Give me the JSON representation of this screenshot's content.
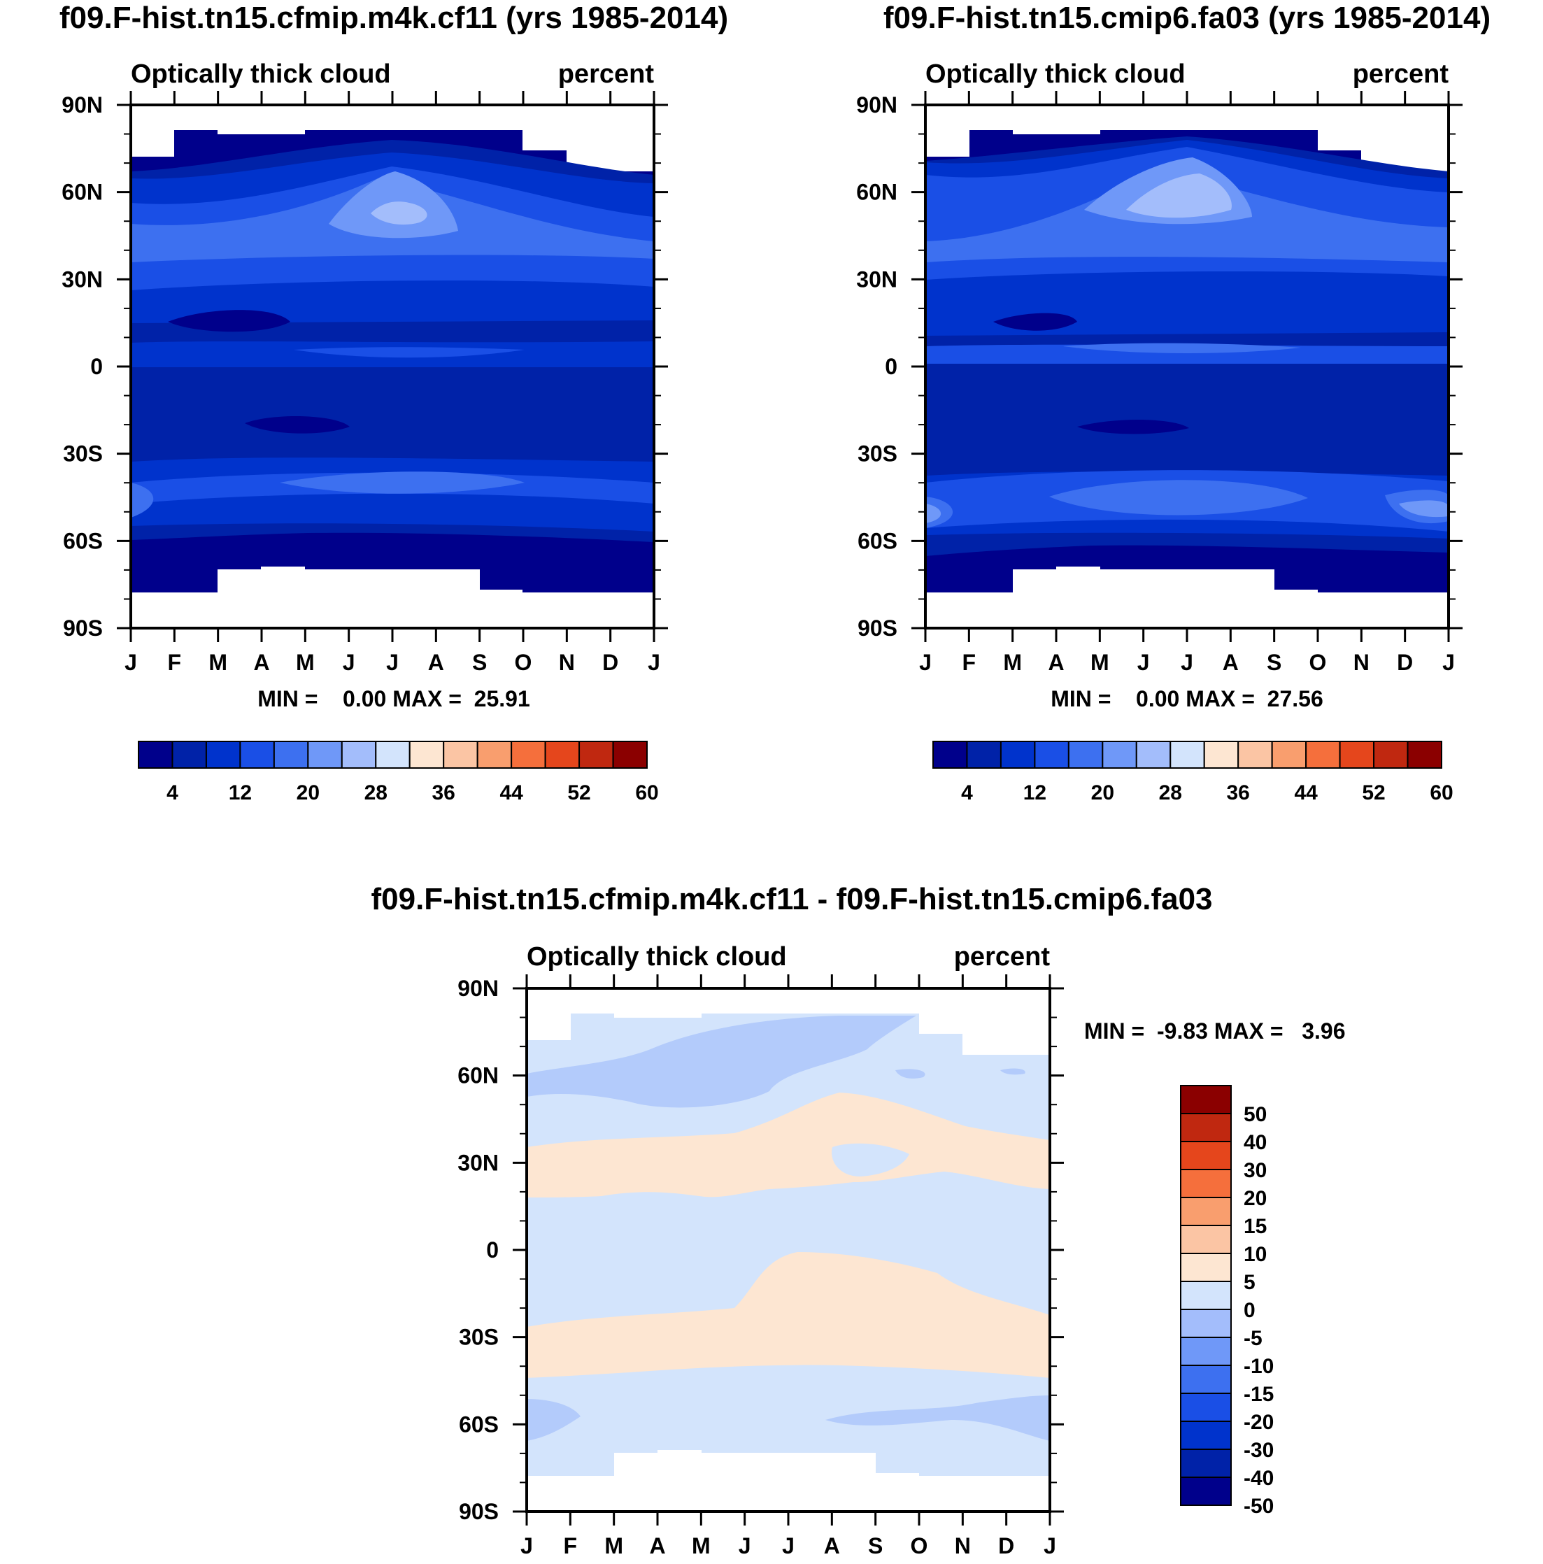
{
  "chart_data": [
    {
      "type": "heatmap",
      "panel": "model-a",
      "title": "f09.F-hist.tn15.cfmip.m4k.cf11 (yrs 1985-2014)",
      "subtitle_left": "Optically thick cloud",
      "subtitle_right": "percent",
      "x_ticks": [
        "J",
        "F",
        "M",
        "A",
        "M",
        "J",
        "J",
        "A",
        "S",
        "O",
        "N",
        "D",
        "J"
      ],
      "y_ticks": [
        "90N",
        "60N",
        "30N",
        "0",
        "30S",
        "60S",
        "90S"
      ],
      "xlim": [
        0,
        12
      ],
      "ylim": [
        -90,
        90
      ],
      "stats": "MIN =    0.00 MAX =  25.91",
      "contour_fields": [
        {
          "level": 1,
          "lat_range": [
            -78,
            82
          ]
        },
        {
          "level": 2,
          "lat_range": [
            -72,
            72
          ]
        },
        {
          "level": 3,
          "lat_range": [
            -60,
            68
          ]
        },
        {
          "level": 4,
          "lat_range": [
            45,
            62
          ]
        },
        {
          "level": 5,
          "lat_range": [
            50,
            60
          ]
        },
        {
          "level": 6,
          "lat_range": [
            52,
            56
          ]
        }
      ]
    },
    {
      "type": "heatmap",
      "panel": "model-b",
      "title": "f09.F-hist.tn15.cmip6.fa03 (yrs 1985-2014)",
      "subtitle_left": "Optically thick cloud",
      "subtitle_right": "percent",
      "x_ticks": [
        "J",
        "F",
        "M",
        "A",
        "M",
        "J",
        "J",
        "A",
        "S",
        "O",
        "N",
        "D",
        "J"
      ],
      "y_ticks": [
        "90N",
        "60N",
        "30N",
        "0",
        "30S",
        "60S",
        "90S"
      ],
      "xlim": [
        0,
        12
      ],
      "ylim": [
        -90,
        90
      ],
      "stats": "MIN =    0.00 MAX =  27.56",
      "contour_fields": [
        {
          "level": 1,
          "lat_range": [
            -78,
            82
          ]
        },
        {
          "level": 2,
          "lat_range": [
            -72,
            72
          ]
        },
        {
          "level": 3,
          "lat_range": [
            -62,
            70
          ]
        },
        {
          "level": 4,
          "lat_range": [
            45,
            66
          ]
        },
        {
          "level": 5,
          "lat_range": [
            50,
            64
          ]
        },
        {
          "level": 6,
          "lat_range": [
            54,
            62
          ]
        }
      ]
    },
    {
      "type": "heatmap",
      "panel": "difference",
      "title": "f09.F-hist.tn15.cfmip.m4k.cf11 - f09.F-hist.tn15.cmip6.fa03",
      "subtitle_left": "Optically thick cloud",
      "subtitle_right": "percent",
      "x_ticks": [
        "J",
        "F",
        "M",
        "A",
        "M",
        "J",
        "J",
        "A",
        "S",
        "O",
        "N",
        "D",
        "J"
      ],
      "y_ticks": [
        "90N",
        "60N",
        "30N",
        "0",
        "30S",
        "60S",
        "90S"
      ],
      "xlim": [
        0,
        12
      ],
      "ylim": [
        -90,
        90
      ],
      "stats": "MIN =  -9.83 MAX =   3.96",
      "contour_fields": [
        {
          "level": -5,
          "lat_range": [
            -78,
            82
          ]
        },
        {
          "level": -10,
          "lat_range": [
            55,
            80
          ]
        },
        {
          "level": 0,
          "lat_range": [
            20,
            38
          ]
        },
        {
          "level": 0,
          "lat_range": [
            -44,
            -27
          ]
        },
        {
          "level": -10,
          "lat_range": [
            -66,
            -50
          ]
        }
      ]
    }
  ],
  "colorbar_top": {
    "ticks": [
      "4",
      "12",
      "20",
      "28",
      "36",
      "44",
      "52",
      "60"
    ],
    "colors": [
      "#00008b",
      "#0022a8",
      "#0033cc",
      "#1a4fe6",
      "#3d70f0",
      "#6f98f8",
      "#a3bdfb",
      "#d3e4fc",
      "#fde6d2",
      "#fbc5a4",
      "#f99e6e",
      "#f56f3c",
      "#e5461c",
      "#c02810",
      "#8b0000"
    ]
  },
  "colorbar_diff": {
    "ticks": [
      "50",
      "40",
      "30",
      "20",
      "15",
      "10",
      "5",
      "0",
      "-5",
      "-10",
      "-15",
      "-20",
      "-30",
      "-40",
      "-50"
    ],
    "colors": [
      "#00008b",
      "#0022a8",
      "#0033cc",
      "#1a4fe6",
      "#3d70f0",
      "#6f98f8",
      "#a3bdfb",
      "#d3e4fc",
      "#fde6d2",
      "#fbc5a4",
      "#f99e6e",
      "#f56f3c",
      "#e5461c",
      "#c02810",
      "#8b0000"
    ]
  }
}
